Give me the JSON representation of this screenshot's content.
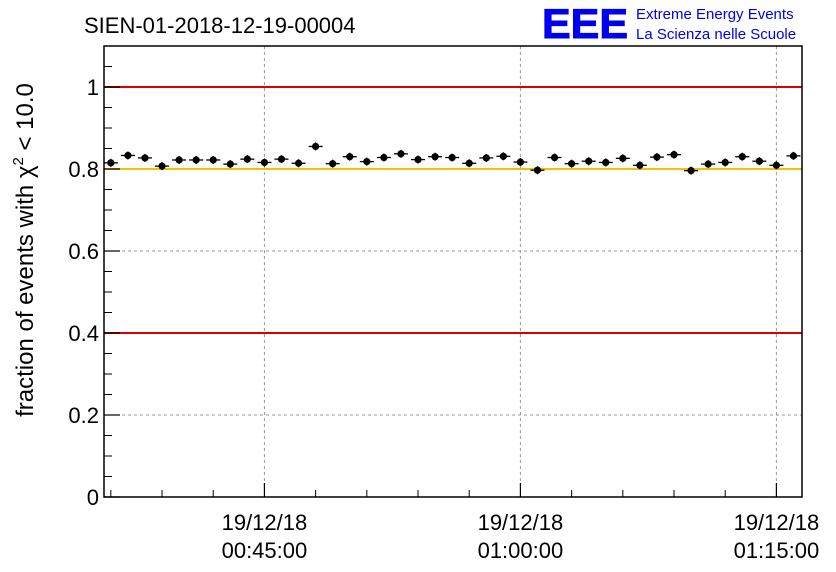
{
  "logo": {
    "text": "EEE",
    "line1": "Extreme Energy Events",
    "line2": "La Scienza nelle Scuole",
    "color": "#0000ee"
  },
  "chart_data": {
    "type": "scatter",
    "title": "SIEN-01-2018-12-19-00004",
    "ylabel_prefix": "fraction of events with χ",
    "ylabel_sup": "2",
    "ylabel_suffix": " < 10.0",
    "ylim": [
      0,
      1.1
    ],
    "yticks": [
      0,
      0.2,
      0.4,
      0.6,
      0.8,
      1
    ],
    "ytick_labels": [
      "0",
      "0.2",
      "0.4",
      "0.6",
      "0.8",
      "1"
    ],
    "xlim_minutes": [
      35.6,
      76.5
    ],
    "xticks": [
      {
        "minute": 45,
        "date": "19/12/18",
        "time": "00:45:00"
      },
      {
        "minute": 60,
        "date": "19/12/18",
        "time": "01:00:00"
      },
      {
        "minute": 75,
        "date": "19/12/18",
        "time": "01:15:00"
      }
    ],
    "grid": true,
    "reference_lines": [
      {
        "y": 1.0,
        "color": "#dd0000"
      },
      {
        "y": 0.8,
        "color": "#f2c200"
      },
      {
        "y": 0.4,
        "color": "#dd0000"
      }
    ],
    "series": [
      {
        "color": "#000000",
        "x_minutes": [
          36.0,
          37.0,
          38.0,
          39.0,
          40.0,
          41.0,
          42.0,
          43.0,
          44.0,
          45.0,
          46.0,
          47.0,
          48.0,
          49.0,
          50.0,
          51.0,
          52.0,
          53.0,
          54.0,
          55.0,
          56.0,
          57.0,
          58.0,
          59.0,
          60.0,
          61.0,
          62.0,
          63.0,
          64.0,
          65.0,
          66.0,
          67.0,
          68.0,
          69.0,
          70.0,
          71.0,
          72.0,
          73.0,
          74.0,
          75.0,
          76.0
        ],
        "y": [
          0.815,
          0.833,
          0.827,
          0.807,
          0.822,
          0.822,
          0.822,
          0.812,
          0.824,
          0.816,
          0.824,
          0.814,
          0.855,
          0.813,
          0.83,
          0.818,
          0.828,
          0.837,
          0.823,
          0.83,
          0.828,
          0.814,
          0.827,
          0.831,
          0.817,
          0.797,
          0.828,
          0.813,
          0.819,
          0.816,
          0.826,
          0.809,
          0.829,
          0.835,
          0.796,
          0.812,
          0.816,
          0.83,
          0.819,
          0.809,
          0.832
        ]
      }
    ]
  }
}
